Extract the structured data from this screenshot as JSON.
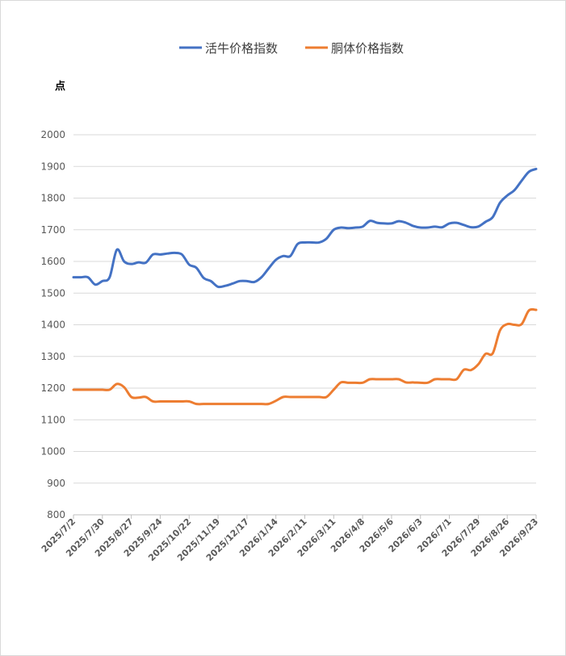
{
  "chart_data": {
    "type": "line",
    "ylabel": "点",
    "ylim": [
      800,
      2000
    ],
    "yticks": [
      800,
      900,
      1000,
      1100,
      1200,
      1300,
      1400,
      1500,
      1600,
      1700,
      1800,
      1900,
      2000
    ],
    "grid": true,
    "legend_position": "top",
    "x_tick_labels": [
      "2025/7/2",
      "2025/7/30",
      "2025/8/27",
      "2025/9/24",
      "2025/10/22",
      "2025/11/19",
      "2025/12/17",
      "2026/1/14",
      "2026/2/11",
      "2026/3/11",
      "2026/4/8",
      "2026/5/6",
      "2026/6/3",
      "2026/7/1",
      "2026/7/29",
      "2026/8/26",
      "2026/9/23"
    ],
    "x": [
      "2025/7/2",
      "2025/7/9",
      "2025/7/16",
      "2025/7/23",
      "2025/7/30",
      "2025/8/6",
      "2025/8/13",
      "2025/8/20",
      "2025/8/27",
      "2025/9/3",
      "2025/9/10",
      "2025/9/17",
      "2025/9/24",
      "2025/10/1",
      "2025/10/8",
      "2025/10/15",
      "2025/10/22",
      "2025/10/29",
      "2025/11/5",
      "2025/11/12",
      "2025/11/19",
      "2025/11/26",
      "2025/12/3",
      "2025/12/10",
      "2025/12/17",
      "2025/12/24",
      "2025/12/31",
      "2026/1/7",
      "2026/1/14",
      "2026/1/21",
      "2026/1/28",
      "2026/2/4",
      "2026/2/11",
      "2026/2/18",
      "2026/2/25",
      "2026/3/4",
      "2026/3/11",
      "2026/3/18",
      "2026/3/25",
      "2026/4/1",
      "2026/4/8",
      "2026/4/15",
      "2026/4/22",
      "2026/4/29",
      "2026/5/6",
      "2026/5/13",
      "2026/5/20",
      "2026/5/27",
      "2026/6/3",
      "2026/6/10",
      "2026/6/17",
      "2026/6/24",
      "2026/7/1",
      "2026/7/8",
      "2026/7/15",
      "2026/7/22",
      "2026/7/29",
      "2026/8/5",
      "2026/8/12",
      "2026/8/19",
      "2026/8/26",
      "2026/9/2",
      "2026/9/9",
      "2026/9/16",
      "2026/9/23"
    ],
    "series": [
      {
        "name": "活牛价格指数",
        "color": "#4472C4",
        "values": [
          1550,
          1550,
          1550,
          1527,
          1538,
          1550,
          1637,
          1600,
          1592,
          1597,
          1596,
          1622,
          1622,
          1625,
          1627,
          1622,
          1590,
          1580,
          1548,
          1538,
          1520,
          1523,
          1530,
          1538,
          1538,
          1535,
          1550,
          1578,
          1605,
          1617,
          1617,
          1655,
          1660,
          1660,
          1660,
          1672,
          1700,
          1707,
          1705,
          1707,
          1710,
          1728,
          1722,
          1720,
          1720,
          1727,
          1722,
          1712,
          1707,
          1707,
          1710,
          1708,
          1720,
          1722,
          1715,
          1708,
          1710,
          1725,
          1740,
          1785,
          1808,
          1825,
          1855,
          1883,
          1892
        ]
      },
      {
        "name": "胴体价格指数",
        "color": "#ED7D31",
        "values": [
          1195,
          1195,
          1195,
          1195,
          1195,
          1195,
          1213,
          1203,
          1172,
          1170,
          1172,
          1158,
          1158,
          1158,
          1158,
          1158,
          1158,
          1150,
          1150,
          1150,
          1150,
          1150,
          1150,
          1150,
          1150,
          1150,
          1150,
          1150,
          1160,
          1172,
          1172,
          1172,
          1172,
          1172,
          1172,
          1172,
          1195,
          1218,
          1217,
          1217,
          1217,
          1228,
          1228,
          1228,
          1228,
          1228,
          1218,
          1218,
          1217,
          1217,
          1228,
          1228,
          1228,
          1228,
          1258,
          1257,
          1275,
          1308,
          1310,
          1382,
          1402,
          1400,
          1402,
          1445,
          1447
        ]
      }
    ]
  }
}
